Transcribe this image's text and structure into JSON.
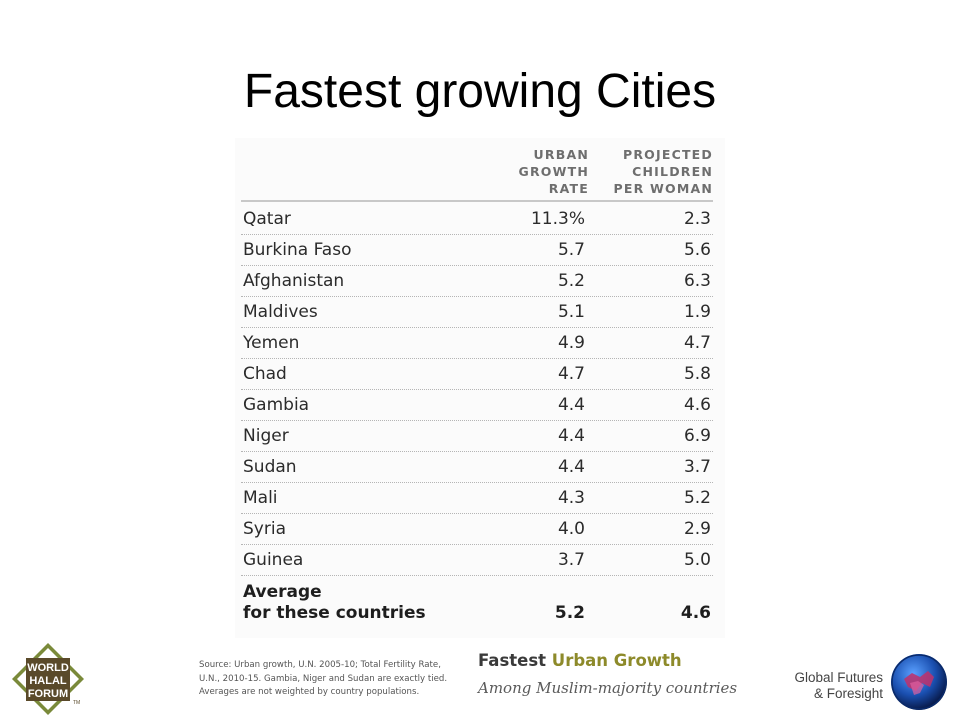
{
  "slide": {
    "title": "Fastest growing Cities"
  },
  "table": {
    "headers": {
      "urban": "URBAN\nGROWTH\nRATE",
      "children": "PROJECTED\nCHILDREN\nPER WOMAN"
    },
    "rows": [
      {
        "country": "Qatar",
        "urban": "11.3%",
        "children": "2.3"
      },
      {
        "country": "Burkina Faso",
        "urban": "5.7",
        "children": "5.6"
      },
      {
        "country": "Afghanistan",
        "urban": "5.2",
        "children": "6.3"
      },
      {
        "country": "Maldives",
        "urban": "5.1",
        "children": "1.9"
      },
      {
        "country": "Yemen",
        "urban": "4.9",
        "children": "4.7"
      },
      {
        "country": "Chad",
        "urban": "4.7",
        "children": "5.8"
      },
      {
        "country": "Gambia",
        "urban": "4.4",
        "children": "4.6"
      },
      {
        "country": "Niger",
        "urban": "4.4",
        "children": "6.9"
      },
      {
        "country": "Sudan",
        "urban": "4.4",
        "children": "3.7"
      },
      {
        "country": "Mali",
        "urban": "4.3",
        "children": "5.2"
      },
      {
        "country": "Syria",
        "urban": "4.0",
        "children": "2.9"
      },
      {
        "country": "Guinea",
        "urban": "3.7",
        "children": "5.0"
      }
    ],
    "average": {
      "label": "Average\nfor these countries",
      "urban": "5.2",
      "children": "4.6"
    }
  },
  "source_note": "Source: Urban growth, U.N. 2005-10; Total Fertility Rate, U.N., 2010-15. Gambia, Niger and Sudan are exactly tied. Averages are not weighted by country populations.",
  "caption": {
    "title_part1": "Fastest",
    "title_part2": "Urban Growth",
    "subtitle": "Among Muslim-majority countries"
  },
  "logos": {
    "world_halal_forum": {
      "line1": "WORLD",
      "line2": "HALAL",
      "line3": "FORUM",
      "mark": "TM"
    },
    "global_futures": {
      "text": "Global Futures\n& Foresight"
    }
  },
  "colors": {
    "caption_accent": "#8d8a2a",
    "logo_green": "#7a8a3a",
    "logo_brown": "#5a4a2a",
    "gff_blue": "#1a4fb0"
  }
}
